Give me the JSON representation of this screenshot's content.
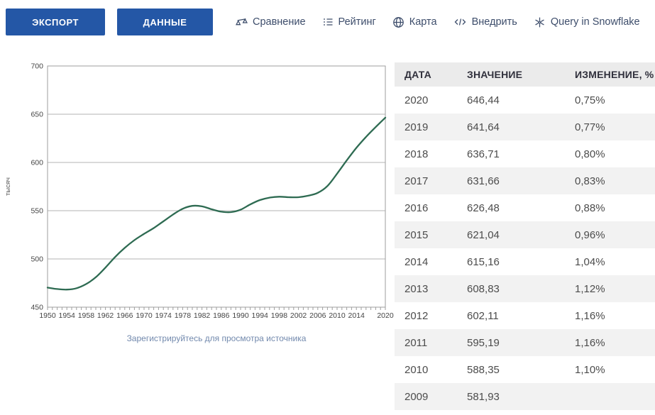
{
  "toolbar": {
    "export_label": "ЭКСПОРТ",
    "data_label": "ДАННЫЕ",
    "links": [
      {
        "icon": "scales-icon",
        "label": "Сравнение"
      },
      {
        "icon": "list-icon",
        "label": "Рейтинг"
      },
      {
        "icon": "globe-icon",
        "label": "Карта"
      },
      {
        "icon": "code-icon",
        "label": "Внедрить"
      },
      {
        "icon": "snowflake-icon",
        "label": "Query in Snowflake"
      }
    ]
  },
  "chart": {
    "caption": "Зарегистрируйтесь для просмотра источника"
  },
  "chart_data": {
    "type": "line",
    "title": "",
    "xlabel": "",
    "ylabel": "тысяч",
    "x_range": [
      1950,
      2020
    ],
    "ylim": [
      450,
      700
    ],
    "y_ticks": [
      450,
      500,
      550,
      600,
      650,
      700
    ],
    "x_tick_labels": [
      "1950",
      "1954",
      "1958",
      "1962",
      "1966",
      "1970",
      "1974",
      "1978",
      "1982",
      "1986",
      "1990",
      "1994",
      "1998",
      "2002",
      "2006",
      "2010",
      "2014",
      "2020"
    ],
    "grid": true,
    "legend": false,
    "line_color": "#2e6b52",
    "points": [
      [
        1950,
        470.3
      ],
      [
        1952,
        468.8
      ],
      [
        1954,
        468.2
      ],
      [
        1956,
        469.6
      ],
      [
        1958,
        474.0
      ],
      [
        1960,
        481.0
      ],
      [
        1962,
        491.0
      ],
      [
        1964,
        502.0
      ],
      [
        1966,
        511.5
      ],
      [
        1968,
        519.5
      ],
      [
        1970,
        526.0
      ],
      [
        1972,
        532.0
      ],
      [
        1974,
        539.0
      ],
      [
        1976,
        546.0
      ],
      [
        1978,
        552.0
      ],
      [
        1980,
        555.0
      ],
      [
        1982,
        554.5
      ],
      [
        1984,
        551.5
      ],
      [
        1986,
        549.0
      ],
      [
        1988,
        548.5
      ],
      [
        1990,
        551.0
      ],
      [
        1992,
        556.5
      ],
      [
        1994,
        561.0
      ],
      [
        1996,
        563.5
      ],
      [
        1998,
        564.5
      ],
      [
        2000,
        564.0
      ],
      [
        2002,
        564.0
      ],
      [
        2004,
        565.5
      ],
      [
        2006,
        568.5
      ],
      [
        2008,
        575.6
      ],
      [
        2010,
        588.35
      ],
      [
        2012,
        602.11
      ],
      [
        2014,
        615.16
      ],
      [
        2016,
        626.48
      ],
      [
        2018,
        636.71
      ],
      [
        2020,
        646.44
      ]
    ]
  },
  "table": {
    "columns": [
      "ДАТА",
      "ЗНАЧЕНИЕ",
      "ИЗМЕНЕНИЕ, %"
    ],
    "rows": [
      {
        "date": "2020",
        "value": "646,44",
        "change": "0,75%"
      },
      {
        "date": "2019",
        "value": "641,64",
        "change": "0,77%"
      },
      {
        "date": "2018",
        "value": "636,71",
        "change": "0,80%"
      },
      {
        "date": "2017",
        "value": "631,66",
        "change": "0,83%"
      },
      {
        "date": "2016",
        "value": "626,48",
        "change": "0,88%"
      },
      {
        "date": "2015",
        "value": "621,04",
        "change": "0,96%"
      },
      {
        "date": "2014",
        "value": "615,16",
        "change": "1,04%"
      },
      {
        "date": "2013",
        "value": "608,83",
        "change": "1,12%"
      },
      {
        "date": "2012",
        "value": "602,11",
        "change": "1,16%"
      },
      {
        "date": "2011",
        "value": "595,19",
        "change": "1,16%"
      },
      {
        "date": "2010",
        "value": "588,35",
        "change": "1,10%"
      },
      {
        "date": "2009",
        "value": "581,93",
        "change": ""
      }
    ]
  }
}
